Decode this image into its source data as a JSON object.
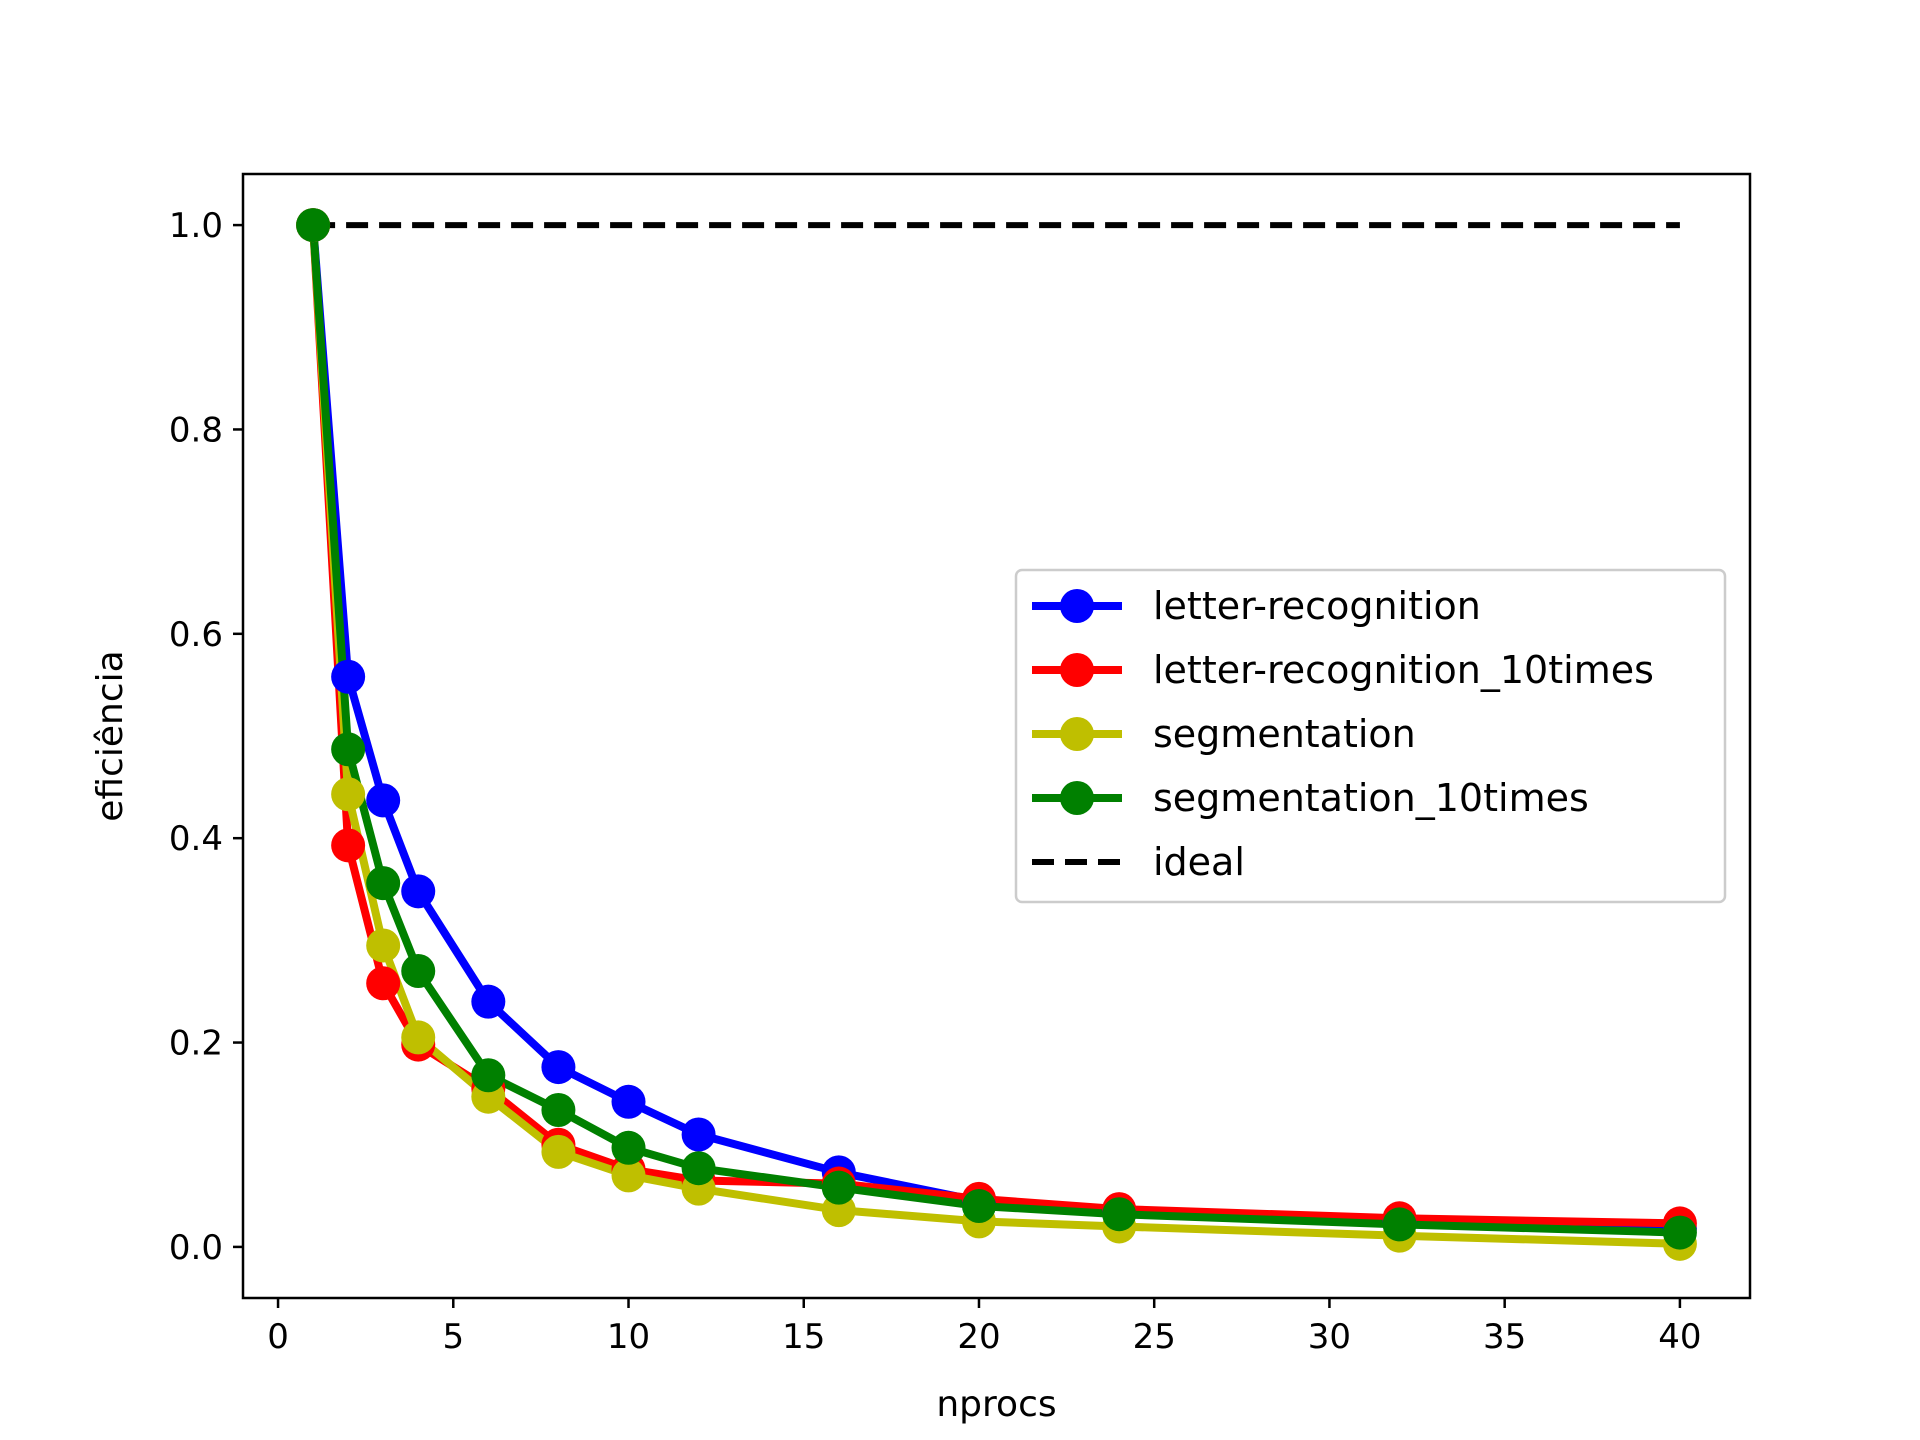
{
  "chart_data": {
    "type": "line",
    "xlabel": "nprocs",
    "ylabel": "eficiência",
    "xlim": [
      -1,
      42
    ],
    "ylim": [
      -0.05,
      1.05
    ],
    "xticks": [
      0,
      5,
      10,
      15,
      20,
      25,
      30,
      35,
      40
    ],
    "yticks": [
      0.0,
      0.2,
      0.4,
      0.6,
      0.8,
      1.0
    ],
    "xtick_labels": [
      "0",
      "5",
      "10",
      "15",
      "20",
      "25",
      "30",
      "35",
      "40"
    ],
    "ytick_labels": [
      "0.0",
      "0.2",
      "0.4",
      "0.6",
      "0.8",
      "1.0"
    ],
    "grid": false,
    "legend_position": "center-right",
    "x": [
      1,
      2,
      3,
      4,
      6,
      8,
      10,
      12,
      16,
      20,
      24,
      32,
      40
    ],
    "series": [
      {
        "name": "letter-recognition",
        "color": "#0000ff",
        "marker": "circle",
        "values": [
          1.0,
          0.558,
          0.437,
          0.348,
          0.24,
          0.176,
          0.142,
          0.11,
          0.073,
          0.045,
          0.036,
          0.026,
          0.018
        ]
      },
      {
        "name": "letter-recognition_10times",
        "color": "#ff0000",
        "marker": "circle",
        "values": [
          1.0,
          0.393,
          0.258,
          0.198,
          0.155,
          0.1,
          0.076,
          0.065,
          0.062,
          0.047,
          0.037,
          0.028,
          0.023
        ]
      },
      {
        "name": "segmentation",
        "color": "#bfbf00",
        "marker": "circle",
        "values": [
          1.0,
          0.443,
          0.295,
          0.205,
          0.147,
          0.093,
          0.07,
          0.057,
          0.036,
          0.025,
          0.02,
          0.011,
          0.003
        ]
      },
      {
        "name": "segmentation_10times",
        "color": "#008000",
        "marker": "circle",
        "values": [
          1.0,
          0.487,
          0.356,
          0.27,
          0.168,
          0.134,
          0.097,
          0.077,
          0.058,
          0.04,
          0.032,
          0.022,
          0.014
        ]
      },
      {
        "name": "ideal",
        "color": "#000000",
        "style": "dashed",
        "x": [
          1,
          40
        ],
        "values": [
          1.0,
          1.0
        ]
      }
    ]
  }
}
